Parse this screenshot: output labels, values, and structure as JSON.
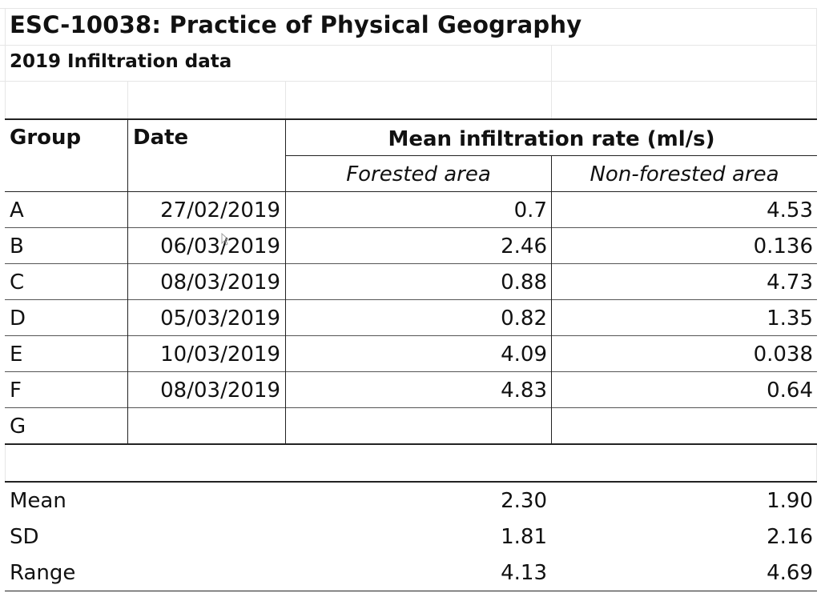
{
  "document": {
    "title": "ESC-10038: Practice of Physical Geography",
    "subtitle": "2019 Infiltration data"
  },
  "table": {
    "headers": {
      "group": "Group",
      "date": "Date",
      "mean_rate": "Mean infiltration rate (ml/s)",
      "forested": "Forested area",
      "non_forested": "Non-forested area"
    },
    "rows": [
      {
        "group": "A",
        "date": "27/02/2019",
        "forested": "0.7",
        "non_forested": "4.53"
      },
      {
        "group": "B",
        "date": "06/03/2019",
        "forested": "2.46",
        "non_forested": "0.136"
      },
      {
        "group": "C",
        "date": "08/03/2019",
        "forested": "0.88",
        "non_forested": "4.73"
      },
      {
        "group": "D",
        "date": "05/03/2019",
        "forested": "0.82",
        "non_forested": "1.35"
      },
      {
        "group": "E",
        "date": "10/03/2019",
        "forested": "4.09",
        "non_forested": "0.038"
      },
      {
        "group": "F",
        "date": "08/03/2019",
        "forested": "4.83",
        "non_forested": "0.64"
      },
      {
        "group": "G",
        "date": "",
        "forested": "",
        "non_forested": ""
      }
    ],
    "summary": [
      {
        "label": "Mean",
        "forested": "2.30",
        "non_forested": "1.90"
      },
      {
        "label": "SD",
        "forested": "1.81",
        "non_forested": "2.16"
      },
      {
        "label": "Range",
        "forested": "4.13",
        "non_forested": "4.69"
      }
    ]
  },
  "icons": {
    "cursor": "mouse-pointer-icon"
  }
}
